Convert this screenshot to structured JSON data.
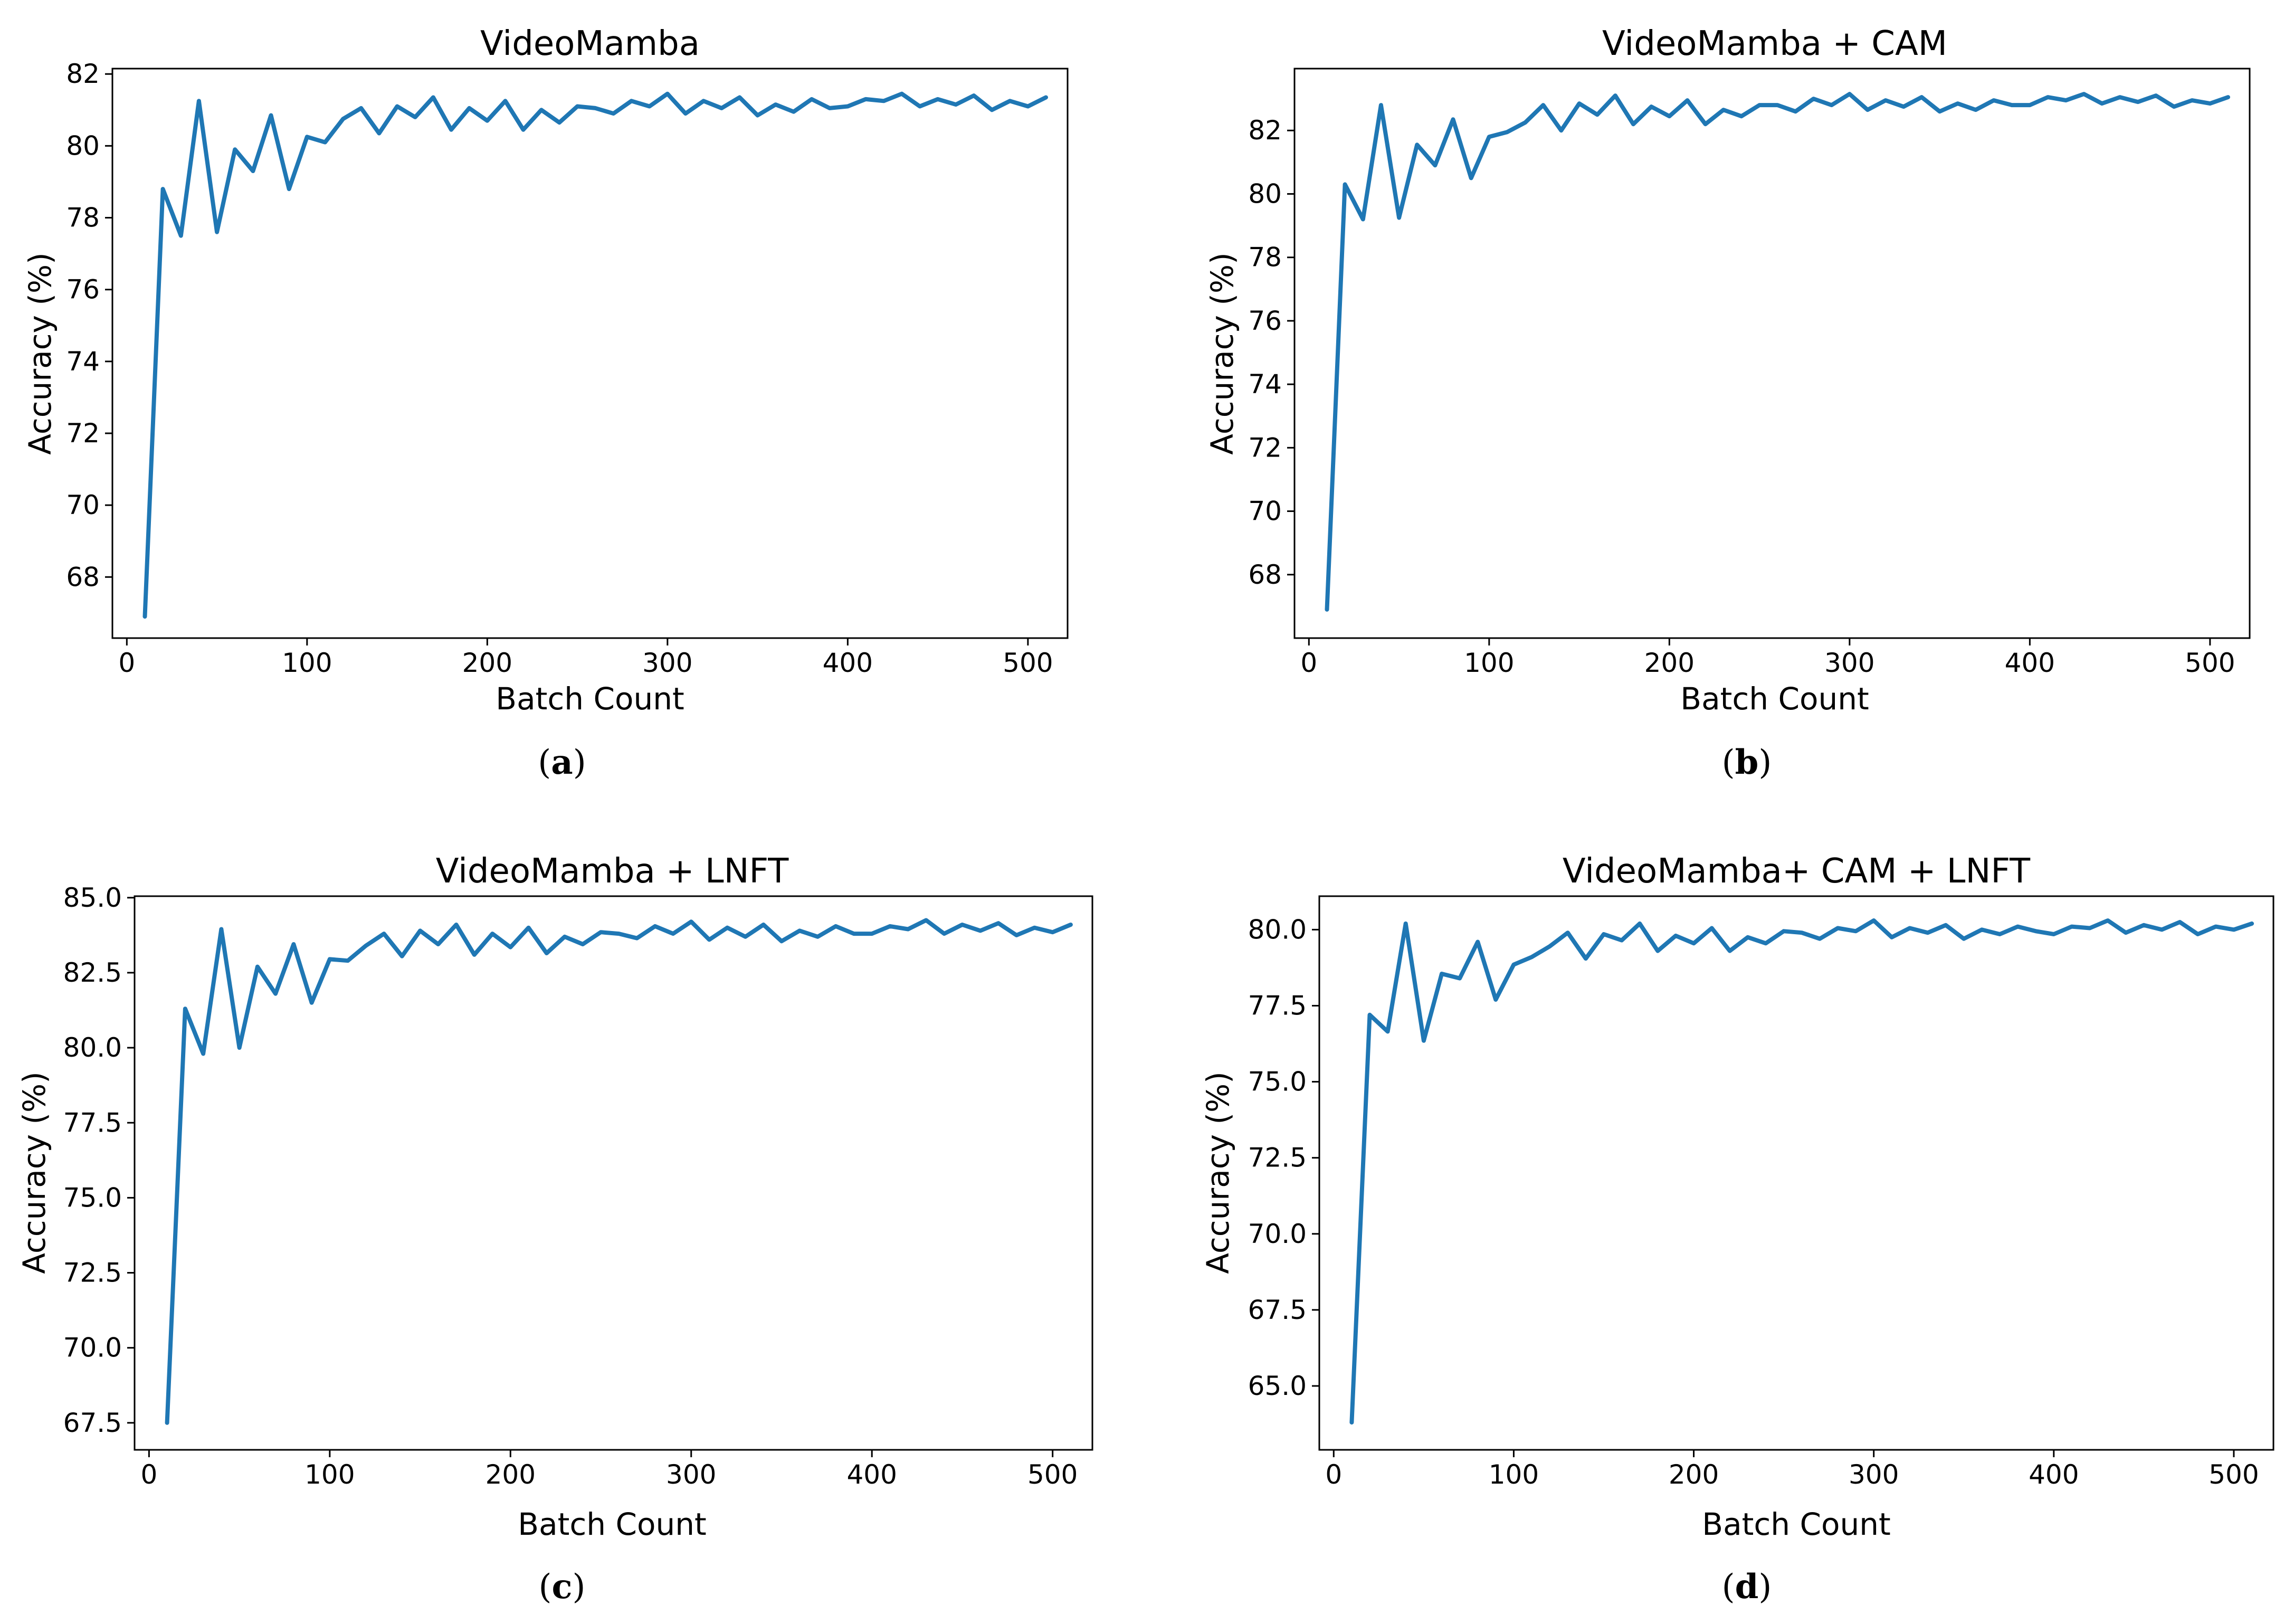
{
  "figure": {
    "line_color": "#1f77b4",
    "captions": [
      "(a)",
      "(b)",
      "(c)",
      "(d)"
    ]
  },
  "chart_data": [
    {
      "type": "line",
      "title": "VideoMamba",
      "xlabel": "Batch Count",
      "ylabel": "Accuracy (%)",
      "xlim": [
        -8,
        522
      ],
      "ylim": [
        66.3,
        82.15
      ],
      "xticks": [
        0,
        100,
        200,
        300,
        400,
        500
      ],
      "xtick_labels": [
        "0",
        "100",
        "200",
        "300",
        "400",
        "500"
      ],
      "yticks": [
        68,
        70,
        72,
        74,
        76,
        78,
        80,
        82
      ],
      "ytick_labels": [
        "68",
        "70",
        "72",
        "74",
        "76",
        "78",
        "80",
        "82"
      ],
      "x": [
        10,
        20,
        30,
        40,
        50,
        60,
        70,
        80,
        90,
        100,
        110,
        120,
        130,
        140,
        150,
        160,
        170,
        180,
        190,
        200,
        210,
        220,
        230,
        240,
        250,
        260,
        270,
        280,
        290,
        300,
        310,
        320,
        330,
        340,
        350,
        360,
        370,
        380,
        390,
        400,
        410,
        420,
        430,
        440,
        450,
        460,
        470,
        480,
        490,
        500,
        510
      ],
      "series": [
        {
          "values": [
            66.9,
            78.8,
            77.5,
            81.25,
            77.6,
            79.9,
            79.3,
            80.85,
            78.8,
            80.25,
            80.1,
            80.75,
            81.05,
            80.35,
            81.1,
            80.8,
            81.35,
            80.45,
            81.05,
            80.7,
            81.25,
            80.45,
            81.0,
            80.65,
            81.1,
            81.05,
            80.9,
            81.25,
            81.1,
            81.45,
            80.9,
            81.25,
            81.05,
            81.35,
            80.85,
            81.15,
            80.95,
            81.3,
            81.05,
            81.1,
            81.3,
            81.25,
            81.45,
            81.1,
            81.3,
            81.15,
            81.4,
            81.0,
            81.25,
            81.1,
            81.35
          ]
        }
      ]
    },
    {
      "type": "line",
      "title": "VideoMamba + CAM",
      "xlabel": "Batch Count",
      "ylabel": "Accuracy (%)",
      "xlim": [
        -8,
        522
      ],
      "ylim": [
        66.0,
        83.95
      ],
      "xticks": [
        0,
        100,
        200,
        300,
        400,
        500
      ],
      "xtick_labels": [
        "0",
        "100",
        "200",
        "300",
        "400",
        "500"
      ],
      "yticks": [
        68,
        70,
        72,
        74,
        76,
        78,
        80,
        82
      ],
      "ytick_labels": [
        "68",
        "70",
        "72",
        "74",
        "76",
        "78",
        "80",
        "82"
      ],
      "x": [
        10,
        20,
        30,
        40,
        50,
        60,
        70,
        80,
        90,
        100,
        110,
        120,
        130,
        140,
        150,
        160,
        170,
        180,
        190,
        200,
        210,
        220,
        230,
        240,
        250,
        260,
        270,
        280,
        290,
        300,
        310,
        320,
        330,
        340,
        350,
        360,
        370,
        380,
        390,
        400,
        410,
        420,
        430,
        440,
        450,
        460,
        470,
        480,
        490,
        500,
        510
      ],
      "series": [
        {
          "values": [
            66.9,
            80.3,
            79.2,
            82.8,
            79.25,
            81.55,
            80.9,
            82.35,
            80.5,
            81.8,
            81.95,
            82.25,
            82.8,
            82.0,
            82.85,
            82.5,
            83.1,
            82.2,
            82.75,
            82.45,
            82.95,
            82.2,
            82.65,
            82.45,
            82.8,
            82.8,
            82.6,
            83.0,
            82.8,
            83.15,
            82.65,
            82.95,
            82.75,
            83.05,
            82.6,
            82.85,
            82.65,
            82.95,
            82.8,
            82.8,
            83.05,
            82.95,
            83.15,
            82.85,
            83.05,
            82.9,
            83.1,
            82.75,
            82.95,
            82.85,
            83.05
          ]
        }
      ]
    },
    {
      "type": "line",
      "title": "VideoMamba + LNFT",
      "xlabel": "Batch Count",
      "ylabel": "Accuracy (%)",
      "xlim": [
        -8,
        522
      ],
      "ylim": [
        66.6,
        85.05
      ],
      "xticks": [
        0,
        100,
        200,
        300,
        400,
        500
      ],
      "xtick_labels": [
        "0",
        "100",
        "200",
        "300",
        "400",
        "500"
      ],
      "yticks": [
        67.5,
        70.0,
        72.5,
        75.0,
        77.5,
        80.0,
        82.5,
        85.0
      ],
      "ytick_labels": [
        "67.5",
        "70.0",
        "72.5",
        "75.0",
        "77.5",
        "80.0",
        "82.5",
        "85.0"
      ],
      "x": [
        10,
        20,
        30,
        40,
        50,
        60,
        70,
        80,
        90,
        100,
        110,
        120,
        130,
        140,
        150,
        160,
        170,
        180,
        190,
        200,
        210,
        220,
        230,
        240,
        250,
        260,
        270,
        280,
        290,
        300,
        310,
        320,
        330,
        340,
        350,
        360,
        370,
        380,
        390,
        400,
        410,
        420,
        430,
        440,
        450,
        460,
        470,
        480,
        490,
        500,
        510
      ],
      "series": [
        {
          "values": [
            67.5,
            81.3,
            79.8,
            83.95,
            80.0,
            82.7,
            81.8,
            83.45,
            81.5,
            82.95,
            82.9,
            83.4,
            83.8,
            83.05,
            83.9,
            83.45,
            84.1,
            83.1,
            83.8,
            83.35,
            84.0,
            83.15,
            83.7,
            83.45,
            83.85,
            83.8,
            83.65,
            84.05,
            83.8,
            84.2,
            83.6,
            84.0,
            83.7,
            84.1,
            83.55,
            83.9,
            83.7,
            84.05,
            83.8,
            83.8,
            84.05,
            83.95,
            84.25,
            83.8,
            84.1,
            83.9,
            84.15,
            83.75,
            84.0,
            83.85,
            84.1
          ]
        }
      ]
    },
    {
      "type": "line",
      "title": "VideoMamba+ CAM + LNFT",
      "xlabel": "Batch Count",
      "ylabel": "Accuracy (%)",
      "xlim": [
        -8,
        522
      ],
      "ylim": [
        62.9,
        81.1
      ],
      "xticks": [
        0,
        100,
        200,
        300,
        400,
        500
      ],
      "xtick_labels": [
        "0",
        "100",
        "200",
        "300",
        "400",
        "500"
      ],
      "yticks": [
        65.0,
        67.5,
        70.0,
        72.5,
        75.0,
        77.5,
        80.0
      ],
      "ytick_labels": [
        "65.0",
        "67.5",
        "70.0",
        "72.5",
        "75.0",
        "77.5",
        "80.0"
      ],
      "x": [
        10,
        20,
        30,
        40,
        50,
        60,
        70,
        80,
        90,
        100,
        110,
        120,
        130,
        140,
        150,
        160,
        170,
        180,
        190,
        200,
        210,
        220,
        230,
        240,
        250,
        260,
        270,
        280,
        290,
        300,
        310,
        320,
        330,
        340,
        350,
        360,
        370,
        380,
        390,
        400,
        410,
        420,
        430,
        440,
        450,
        460,
        470,
        480,
        490,
        500,
        510
      ],
      "series": [
        {
          "values": [
            63.8,
            77.2,
            76.65,
            80.2,
            76.35,
            78.55,
            78.4,
            79.6,
            77.7,
            78.85,
            79.1,
            79.45,
            79.9,
            79.05,
            79.85,
            79.65,
            80.2,
            79.3,
            79.8,
            79.55,
            80.05,
            79.3,
            79.75,
            79.55,
            79.95,
            79.9,
            79.7,
            80.05,
            79.95,
            80.3,
            79.75,
            80.05,
            79.9,
            80.15,
            79.7,
            80.0,
            79.85,
            80.1,
            79.95,
            79.85,
            80.1,
            80.05,
            80.3,
            79.9,
            80.15,
            80.0,
            80.25,
            79.85,
            80.1,
            80.0,
            80.2
          ]
        }
      ]
    }
  ]
}
